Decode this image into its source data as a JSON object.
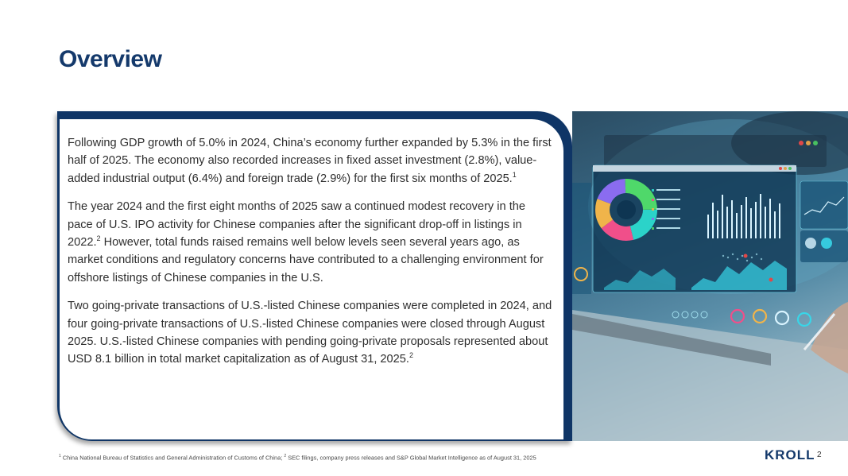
{
  "slide": {
    "title": "Overview",
    "paragraphs": [
      {
        "text": "Following GDP growth of 5.0% in 2024, China’s economy further expanded by 5.3% in the first half of 2025. The economy also recorded increases in fixed asset investment (2.8%), value-added industrial output (6.4%) and foreign trade (2.9%) for the first six months of 2025.",
        "ref": "1"
      },
      {
        "text_before": "The year 2024 and the first eight months of 2025 saw a continued modest recovery in the pace of U.S. IPO activity for Chinese companies after the significant drop-off in listings in 2022.",
        "ref": "2",
        "text_after": " However, total funds raised remains well below levels seen several years ago, as market conditions and regulatory concerns have contributed to a challenging environment for offshore listings of Chinese companies in the U.S."
      },
      {
        "text": "Two going-private transactions of U.S.-listed Chinese companies were completed in 2024, and four going-private transactions of U.S.-listed Chinese companies were closed through August 2025. U.S.-listed Chinese companies with pending going-private proposals represented about USD 8.1 billion in total market capitalization as of August 31, 2025.",
        "ref": "2"
      }
    ],
    "footnote": {
      "ref1": "1",
      "text1": " China National Bureau of Statistics and General Administration of Customs of China; ",
      "ref2": "2",
      "text2": " SEC filings, company press releases and S&P Global Market Intelligence as of August 31, 2025"
    },
    "logo_text": "KROLL",
    "page_number": "2"
  },
  "colors": {
    "brand_navy": "#14396b",
    "card_frame": "#0f3566",
    "accent_cyan": "#38d6e8"
  },
  "image": {
    "description_icon": "analytics-dashboard-illustration"
  }
}
